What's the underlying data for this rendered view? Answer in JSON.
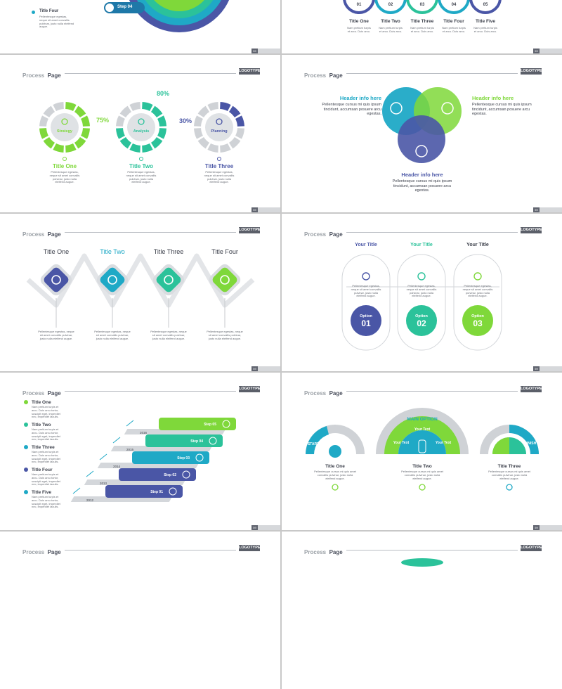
{
  "header": {
    "process": "Process",
    "page": "Page",
    "logo": "LOGOTYPE"
  },
  "page_numbers": [
    "59",
    "59",
    "59",
    "59",
    "59",
    "59",
    "59",
    "59"
  ],
  "colors": {
    "navy": "#4a56a6",
    "teal": "#1fa9c6",
    "green": "#2bc29a",
    "lime": "#7fd83a",
    "gray": "#cfd2d6"
  },
  "body_short": "Pellentesque egestas, neque sit amet convallis pulvinar, justo nulla eleifend augue.",
  "body_tiny": "Nam pretium turpis et arcu. Duis arcu.",
  "s1": {
    "title_four": "Title Four",
    "step04": "Step 04"
  },
  "s2": {
    "titles": [
      "Title One",
      "Title Two",
      "Title Three",
      "Title Four",
      "Title Five"
    ],
    "nums": [
      "01",
      "02",
      "03",
      "04",
      "05"
    ]
  },
  "s3": {
    "rings": [
      {
        "label": "Strategy",
        "title": "Title One",
        "pct": "75%",
        "fill": 0.75
      },
      {
        "label": "Analysis",
        "title": "Title Two",
        "pct": "80%",
        "fill": 0.8
      },
      {
        "label": "Planning",
        "title": "Title Three",
        "pct": "30%",
        "fill": 0.3
      }
    ]
  },
  "s4": {
    "header": "Header info here",
    "text": "Pellentesque cursus mi quis ipsum tincidunt, accumsan posuere arcu egestas."
  },
  "s5": {
    "titles": [
      "Title One",
      "Title Two",
      "Title Three",
      "Title Four"
    ]
  },
  "s6": {
    "your_title": "Your Title",
    "option": "Option",
    "nums": [
      "01",
      "02",
      "03"
    ],
    "text": "Pellentesque egestas, neque sit amet convallis pulvinar, justo nulla eleifend augue."
  },
  "s7": {
    "titles": [
      "Title One",
      "Title Two",
      "Title Three",
      "Title Four",
      "Title Five"
    ],
    "text": "Nam pretium turpis et arcu. Duis arcu tortor, suscipit eget, imperdiet nec, imperdiet iaculis.",
    "steps": [
      "Step 01",
      "Step 02",
      "Step 03",
      "Step 04",
      "Step 05"
    ],
    "years": [
      "2012",
      "2013",
      "2014",
      "2015",
      "2016"
    ]
  },
  "s8": {
    "main_option": "MAIN OPTION",
    "your_text": "Your Text",
    "start": "START",
    "finish": "FINISH",
    "titles": [
      "Title One",
      "Title Two",
      "Title Three"
    ],
    "text": "Pellentesque cursus mi quis amet convallis pulvinar, justo nulla eleifend augue."
  }
}
